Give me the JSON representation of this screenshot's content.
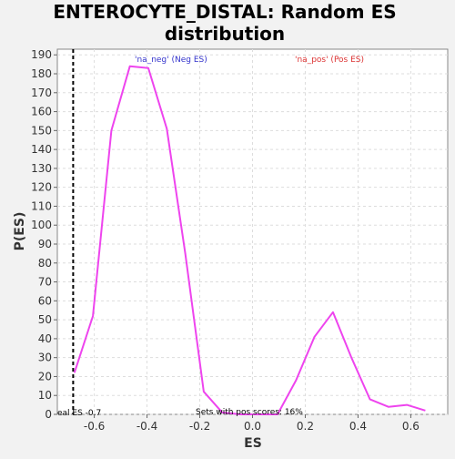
{
  "chart_data": {
    "type": "line",
    "title": "ENTEROCYTE_DISTAL: Random ES distribution",
    "title_lines": [
      "ENTEROCYTE_DISTAL: Random ES",
      "distribution"
    ],
    "xlabel": "ES",
    "ylabel": "P(ES)",
    "xlim": [
      -0.74,
      0.74
    ],
    "ylim": [
      0,
      193
    ],
    "xticks": [
      -0.6,
      -0.4,
      -0.2,
      0.0,
      0.2,
      0.4,
      0.6
    ],
    "xtick_labels": [
      "-0.6",
      "-0.4",
      "-0.2",
      "0.0",
      "0.2",
      "0.4",
      "0.6"
    ],
    "yticks": [
      0,
      10,
      20,
      30,
      40,
      50,
      60,
      70,
      80,
      90,
      100,
      110,
      120,
      130,
      140,
      150,
      160,
      170,
      180,
      190
    ],
    "ytick_labels": [
      "0",
      "10",
      "20",
      "30",
      "40",
      "50",
      "60",
      "70",
      "80",
      "90",
      "100",
      "110",
      "120",
      "130",
      "140",
      "150",
      "160",
      "170",
      "180",
      "190"
    ],
    "grid": true,
    "series": [
      {
        "color": "#ee44ee",
        "x": [
          -0.675,
          -0.605,
          -0.535,
          -0.465,
          -0.395,
          -0.325,
          -0.255,
          -0.185,
          -0.115,
          -0.045,
          0.025,
          0.095,
          0.165,
          0.235,
          0.305,
          0.375,
          0.445,
          0.515,
          0.585,
          0.655
        ],
        "y": [
          22,
          52,
          150,
          184,
          183,
          151,
          85,
          12,
          1,
          0,
          0,
          0,
          18,
          41,
          54,
          30,
          8,
          4,
          5,
          2
        ]
      }
    ],
    "reference_line": {
      "x": -0.68,
      "style": "dashed",
      "color": "#000000"
    },
    "annotations": {
      "neg_label": {
        "text": "'na_neg' (Neg ES)",
        "color": "#3333cc"
      },
      "pos_label": {
        "text": "'na_pos' (Pos ES)",
        "color": "#dd3333"
      },
      "real_es": {
        "text": "eal ES -0.7"
      },
      "pos_scores": {
        "text": "Sets with pos scores: 16%"
      }
    }
  }
}
